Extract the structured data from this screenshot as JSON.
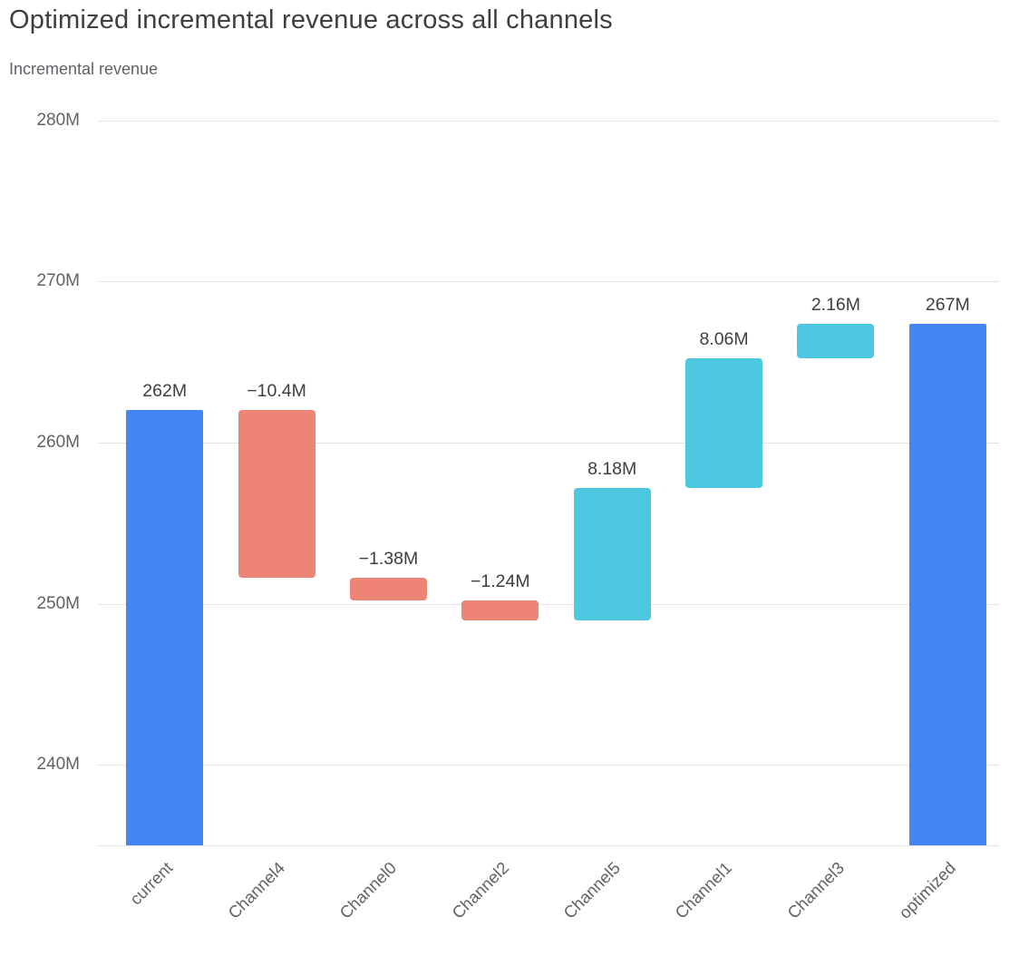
{
  "header": {
    "title": "Optimized incremental revenue across all channels",
    "subtitle": "Incremental revenue"
  },
  "chart_data": {
    "type": "waterfall",
    "title": "Optimized incremental revenue across all channels",
    "ylabel": "Incremental revenue",
    "grid": true,
    "legend": false,
    "categories": [
      "current",
      "Channel4",
      "Channel0",
      "Channel2",
      "Channel5",
      "Channel1",
      "Channel3",
      "optimized"
    ],
    "bars": [
      {
        "category": "current",
        "value": 262,
        "label": "262M",
        "kind": "total",
        "start": 0,
        "end": 262
      },
      {
        "category": "Channel4",
        "value": -10.4,
        "label": "−10.4M",
        "kind": "decrease",
        "start": 262,
        "end": 251.6
      },
      {
        "category": "Channel0",
        "value": -1.38,
        "label": "−1.38M",
        "kind": "decrease",
        "start": 251.6,
        "end": 250.22
      },
      {
        "category": "Channel2",
        "value": -1.24,
        "label": "−1.24M",
        "kind": "decrease",
        "start": 250.22,
        "end": 248.98
      },
      {
        "category": "Channel5",
        "value": 8.18,
        "label": "8.18M",
        "kind": "increase",
        "start": 248.98,
        "end": 257.16
      },
      {
        "category": "Channel1",
        "value": 8.06,
        "label": "8.06M",
        "kind": "increase",
        "start": 257.16,
        "end": 265.22
      },
      {
        "category": "Channel3",
        "value": 2.16,
        "label": "2.16M",
        "kind": "increase",
        "start": 265.22,
        "end": 267.38
      },
      {
        "category": "optimized",
        "value": 267.38,
        "label": "267M",
        "kind": "total",
        "start": 0,
        "end": 267.38
      }
    ],
    "y_axis": {
      "ticks": [
        {
          "label": "280M",
          "value": 280
        },
        {
          "label": "270M",
          "value": 270
        },
        {
          "label": "260M",
          "value": 260
        },
        {
          "label": "250M",
          "value": 250
        },
        {
          "label": "240M",
          "value": 240
        }
      ],
      "min": 235,
      "max": 281
    },
    "colors": {
      "total": "#4485F4",
      "decrease": "#EE8477",
      "increase": "#4CC8E0",
      "grid": "#E3E3E3",
      "bar_label": "#3C4043",
      "tick_label": "#5F6368",
      "title": "#3C4043",
      "subtitle": "#5F6368"
    }
  }
}
